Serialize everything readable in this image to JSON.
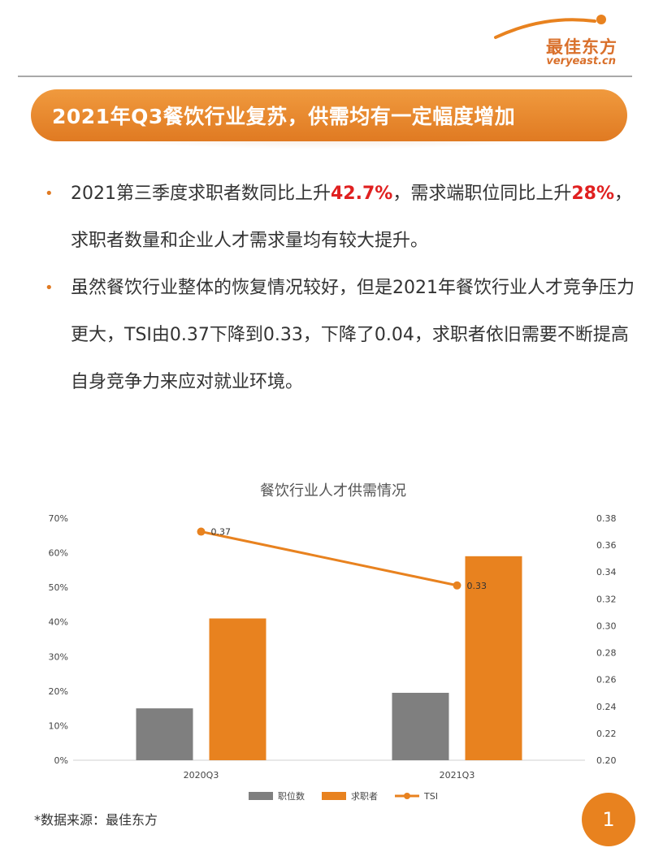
{
  "header": {
    "brand_name": "最佳东方",
    "brand_url": "veryeast.cn",
    "accent_color": "#e07a22"
  },
  "banner": {
    "title": "2021年Q3餐饮行业复苏，供需均有一定幅度增加"
  },
  "bullets": [
    {
      "parts": [
        {
          "text": "2021第三季度求职者数同比上升",
          "highlight": false
        },
        {
          "text": "42.7%",
          "highlight": true
        },
        {
          "text": "，需求端职位同比上升",
          "highlight": false
        },
        {
          "text": "28%",
          "highlight": true
        },
        {
          "text": "，求职者数量和企业人才需求量均有较大提升。",
          "highlight": false
        }
      ]
    },
    {
      "parts": [
        {
          "text": "虽然餐饮行业整体的恢复情况较好，但是2021年餐饮行业人才竞争压力更大，TSI由0.37下降到0.33，下降了0.04，求职者依旧需要不断提高自身竞争力来应对就业环境。",
          "highlight": false
        }
      ]
    }
  ],
  "chart_data": {
    "type": "bar",
    "title": "餐饮行业人才供需情况",
    "categories": [
      "2020Q3",
      "2021Q3"
    ],
    "series": [
      {
        "name": "职位数",
        "type": "bar",
        "axis": "left",
        "color": "#7f7f7f",
        "values": [
          15,
          19.5
        ]
      },
      {
        "name": "求职者",
        "type": "bar",
        "axis": "left",
        "color": "#e8821f",
        "values": [
          41,
          59
        ]
      },
      {
        "name": "TSI",
        "type": "line",
        "axis": "right",
        "color": "#e8821f",
        "values": [
          0.37,
          0.33
        ],
        "labels": [
          "0.37",
          "0.33"
        ]
      }
    ],
    "y_left": {
      "min": 0,
      "max": 70,
      "step": 10,
      "ticks": [
        "0%",
        "10%",
        "20%",
        "30%",
        "40%",
        "50%",
        "60%",
        "70%"
      ]
    },
    "y_right": {
      "min": 0.2,
      "max": 0.38,
      "step": 0.02,
      "ticks": [
        "0.20",
        "0.22",
        "0.24",
        "0.26",
        "0.28",
        "0.30",
        "0.32",
        "0.34",
        "0.36",
        "0.38"
      ]
    },
    "grid": false,
    "legend_position": "bottom"
  },
  "footer": {
    "source": "*数据来源：最佳东方",
    "page_number": "1"
  }
}
